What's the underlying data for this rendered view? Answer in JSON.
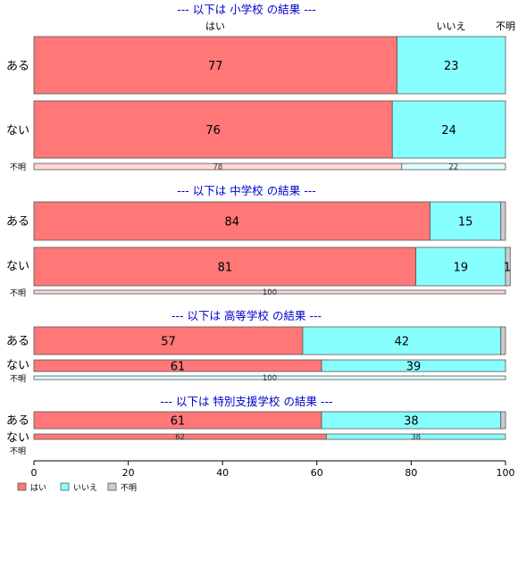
{
  "chart_data": {
    "type": "bar",
    "orientation": "horizontal-stacked-percent",
    "series_names": [
      "はい",
      "いいえ",
      "不明"
    ],
    "colors": {
      "はい": "#FF7777",
      "いいえ": "#88FFFF",
      "不明": "#CCCCCC"
    },
    "top_headers": [
      "はい",
      "いいえ",
      "不明"
    ],
    "panels": [
      {
        "title": "--- 以下は 小学校 の結果 ---",
        "rows": [
          {
            "label": "ある",
            "values": [
              77,
              23,
              0
            ],
            "labels": [
              "77",
              "23",
              ""
            ]
          },
          {
            "label": "ない",
            "values": [
              76,
              24,
              0
            ],
            "labels": [
              "76",
              "24",
              ""
            ]
          },
          {
            "label": "不明",
            "values": [
              78,
              22,
              0
            ],
            "labels": [
              "78",
              "22",
              ""
            ]
          }
        ]
      },
      {
        "title": "--- 以下は 中学校 の結果 ---",
        "rows": [
          {
            "label": "ある",
            "values": [
              84,
              15,
              1
            ],
            "labels": [
              "84",
              "15",
              ""
            ]
          },
          {
            "label": "ない",
            "values": [
              81,
              19,
              1
            ],
            "labels": [
              "81",
              "19",
              "1"
            ]
          },
          {
            "label": "不明",
            "values": [
              100,
              0,
              0
            ],
            "labels": [
              "100",
              "",
              ""
            ]
          }
        ]
      },
      {
        "title": "--- 以下は 高等学校 の結果 ---",
        "rows": [
          {
            "label": "ある",
            "values": [
              57,
              42,
              1
            ],
            "labels": [
              "57",
              "42",
              ""
            ]
          },
          {
            "label": "ない",
            "values": [
              61,
              39,
              0
            ],
            "labels": [
              "61",
              "39",
              ""
            ]
          },
          {
            "label": "不明",
            "values": [
              0,
              100,
              0
            ],
            "labels": [
              "",
              "100",
              ""
            ]
          }
        ]
      },
      {
        "title": "--- 以下は 特別支援学校 の結果 ---",
        "rows": [
          {
            "label": "ある",
            "values": [
              61,
              38,
              1
            ],
            "labels": [
              "61",
              "38",
              ""
            ]
          },
          {
            "label": "ない",
            "values": [
              62,
              38,
              0
            ],
            "labels": [
              "62",
              "38",
              ""
            ]
          },
          {
            "label": "不明",
            "values": [],
            "labels": []
          }
        ]
      }
    ],
    "x_ticks": [
      0,
      20,
      40,
      60,
      80,
      100
    ],
    "xlim": [
      0,
      100
    ],
    "legend": [
      "はい",
      "いいえ",
      "不明"
    ]
  }
}
